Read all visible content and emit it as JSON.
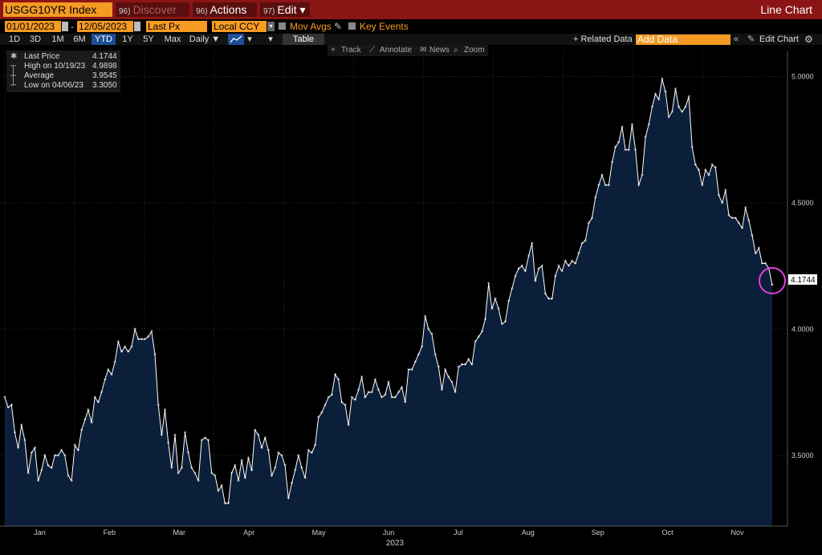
{
  "titlebar": {
    "ticker": "USGG10YR Index",
    "discover_num": "96)",
    "discover_label": "Discover",
    "actions_num": "96)",
    "actions_label": "Actions ▾",
    "edit_num": "97)",
    "edit_label": "Edit ▾",
    "chart_type": "Line Chart"
  },
  "controls": {
    "start_date": "01/01/2023",
    "end_date": "12/05/2023",
    "date_sep": "-",
    "price_field": "Last Px",
    "currency": "Local CCY",
    "mov_avgs": "Mov Avgs",
    "key_events": "Key Events",
    "periods": [
      "1D",
      "3D",
      "1M",
      "6M",
      "YTD",
      "1Y",
      "5Y",
      "Max"
    ],
    "active_period": "YTD",
    "frequency": "Daily ▼",
    "table_label": "Table",
    "related_data": "+ Related Data",
    "add_data_placeholder": "Add Data",
    "edit_chart": "Edit Chart"
  },
  "toolbar": {
    "track": "Track",
    "annotate": "Annotate",
    "news": "News",
    "zoom": "Zoom"
  },
  "legend": {
    "rows": [
      {
        "label": "Last Price",
        "value": "4.1744"
      },
      {
        "label": "High on 10/19/23",
        "value": "4.9898"
      },
      {
        "label": "Average",
        "value": "3.9545"
      },
      {
        "label": "Low on 04/06/23",
        "value": "3.3050"
      }
    ]
  },
  "colors": {
    "line": "#ffffff",
    "area": "#0b1f3a",
    "highlight_circle": "#e040e0",
    "accent": "#f59a23",
    "titlebar": "#8b1515"
  },
  "chart_data": {
    "type": "area",
    "series": [
      {
        "values": [
          3.73,
          3.69,
          3.7,
          3.59,
          3.53,
          3.62,
          3.56,
          3.43,
          3.51,
          3.53,
          3.4,
          3.44,
          3.5,
          3.46,
          3.45,
          3.5,
          3.5,
          3.52,
          3.5,
          3.42,
          3.4,
          3.54,
          3.52,
          3.6,
          3.64,
          3.68,
          3.63,
          3.73,
          3.71,
          3.75,
          3.8,
          3.84,
          3.82,
          3.87,
          3.95,
          3.91,
          3.93,
          3.91,
          3.93,
          4.0,
          3.96,
          3.96,
          3.96,
          3.97,
          3.99,
          3.9,
          3.7,
          3.58,
          3.68,
          3.55,
          3.45,
          3.58,
          3.43,
          3.45,
          3.59,
          3.51,
          3.45,
          3.43,
          3.4,
          3.56,
          3.57,
          3.56,
          3.43,
          3.42,
          3.36,
          3.38,
          3.31,
          3.31,
          3.43,
          3.46,
          3.4,
          3.48,
          3.41,
          3.49,
          3.44,
          3.6,
          3.58,
          3.53,
          3.57,
          3.52,
          3.42,
          3.45,
          3.51,
          3.5,
          3.46,
          3.33,
          3.39,
          3.44,
          3.5,
          3.45,
          3.41,
          3.52,
          3.51,
          3.54,
          3.65,
          3.67,
          3.7,
          3.73,
          3.74,
          3.82,
          3.8,
          3.71,
          3.7,
          3.62,
          3.73,
          3.72,
          3.76,
          3.81,
          3.73,
          3.75,
          3.75,
          3.8,
          3.76,
          3.73,
          3.74,
          3.79,
          3.73,
          3.73,
          3.75,
          3.77,
          3.71,
          3.84,
          3.84,
          3.87,
          3.9,
          3.93,
          4.05,
          4.0,
          3.98,
          3.9,
          3.85,
          3.76,
          3.84,
          3.81,
          3.79,
          3.75,
          3.85,
          3.86,
          3.86,
          3.88,
          3.86,
          3.95,
          3.97,
          3.99,
          4.04,
          4.18,
          4.08,
          4.12,
          4.08,
          4.02,
          4.03,
          4.11,
          4.16,
          4.21,
          4.24,
          4.25,
          4.23,
          4.29,
          4.34,
          4.19,
          4.24,
          4.25,
          4.14,
          4.12,
          4.12,
          4.21,
          4.25,
          4.23,
          4.27,
          4.25,
          4.27,
          4.26,
          4.3,
          4.34,
          4.35,
          4.42,
          4.44,
          4.52,
          4.57,
          4.61,
          4.57,
          4.57,
          4.66,
          4.72,
          4.74,
          4.8,
          4.71,
          4.71,
          4.81,
          4.71,
          4.57,
          4.61,
          4.76,
          4.81,
          4.88,
          4.93,
          4.91,
          4.99,
          4.94,
          4.84,
          4.86,
          4.95,
          4.88,
          4.86,
          4.88,
          4.92,
          4.72,
          4.65,
          4.63,
          4.57,
          4.63,
          4.61,
          4.65,
          4.64,
          4.53,
          4.5,
          4.55,
          4.45,
          4.44,
          4.44,
          4.42,
          4.4,
          4.48,
          4.43,
          4.37,
          4.3,
          4.32,
          4.26,
          4.26,
          4.24,
          4.1744
        ]
      }
    ],
    "x_axis_label": "2023",
    "x_ticks": [
      "Jan",
      "Feb",
      "Mar",
      "Apr",
      "May",
      "Jun",
      "Jul",
      "Aug",
      "Sep",
      "Oct",
      "Nov"
    ],
    "y_ticks": [
      "3.5000",
      "4.0000",
      "4.5000",
      "5.0000"
    ],
    "ylim": [
      3.22,
      5.1
    ],
    "last_value_label": "4.1744",
    "grid": true
  }
}
